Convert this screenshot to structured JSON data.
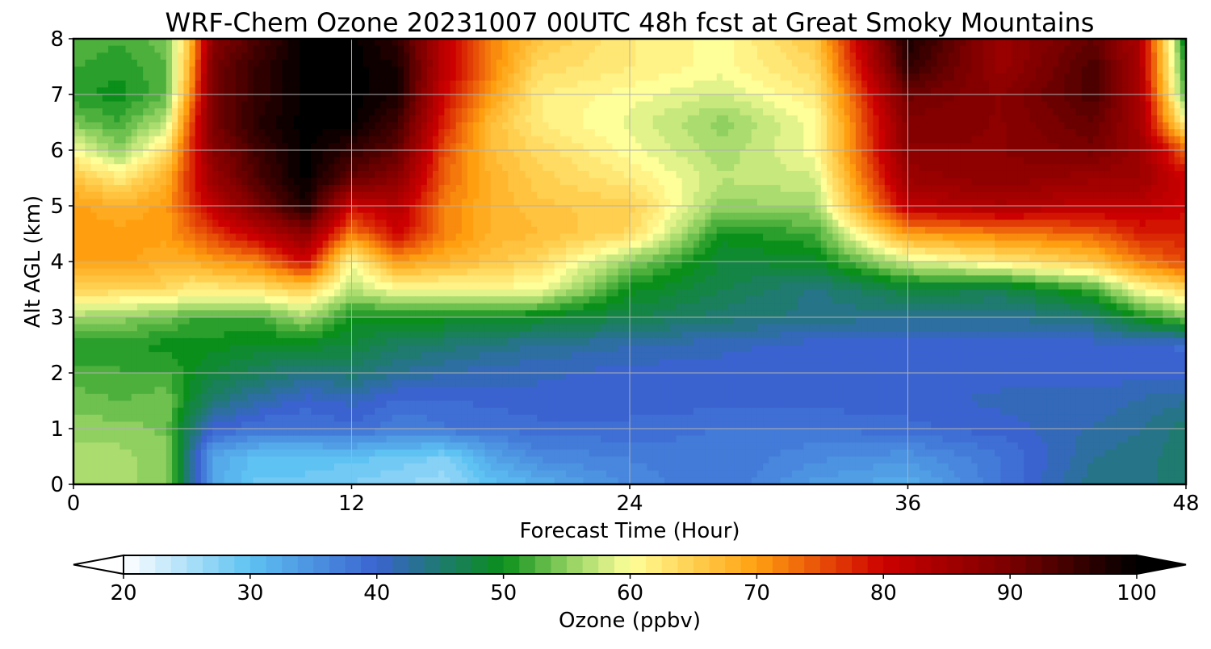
{
  "chart_data": {
    "type": "heatmap",
    "title": "WRF-Chem Ozone  20231007 00UTC 48h fcst at Great Smoky Mountains",
    "xlabel": "Forecast Time (Hour)",
    "ylabel": "Alt AGL (km)",
    "xlim": [
      0,
      48
    ],
    "ylim": [
      0,
      8
    ],
    "xticks": [
      0,
      12,
      24,
      36,
      48
    ],
    "yticks": [
      0,
      1,
      2,
      3,
      4,
      5,
      6,
      7,
      8
    ],
    "grid": true,
    "colorbar": {
      "label": "Ozone  (ppbv)",
      "range": [
        20,
        100
      ],
      "ticks": [
        20,
        30,
        40,
        50,
        60,
        70,
        80,
        90,
        100
      ],
      "extend": "both",
      "colormap": [
        {
          "value": 20,
          "color": "#ffffff"
        },
        {
          "value": 30,
          "color": "#5ec2f2"
        },
        {
          "value": 40,
          "color": "#3a63d0"
        },
        {
          "value": 45,
          "color": "#1f7a70"
        },
        {
          "value": 50,
          "color": "#0a8f1a"
        },
        {
          "value": 55,
          "color": "#8fd060"
        },
        {
          "value": 60,
          "color": "#ffff9a"
        },
        {
          "value": 65,
          "color": "#ffcf50"
        },
        {
          "value": 70,
          "color": "#ff9f10"
        },
        {
          "value": 75,
          "color": "#e85008"
        },
        {
          "value": 80,
          "color": "#cc0000"
        },
        {
          "value": 90,
          "color": "#7a0000"
        },
        {
          "value": 100,
          "color": "#000000"
        }
      ]
    },
    "x": [
      0,
      2,
      4,
      5,
      6,
      8,
      10,
      12,
      14,
      16,
      18,
      20,
      24,
      28,
      32,
      36,
      40,
      44,
      46,
      48
    ],
    "y": [
      0,
      0.5,
      1,
      1.5,
      2,
      2.5,
      3,
      3.5,
      4,
      4.5,
      5,
      5.5,
      6,
      6.5,
      7,
      7.5,
      8
    ],
    "z": [
      [
        57,
        56,
        55,
        44,
        33,
        29,
        29,
        28,
        27,
        26,
        30,
        32,
        36,
        38,
        34,
        32,
        38,
        44,
        44,
        45
      ],
      [
        56,
        56,
        55,
        44,
        33,
        30,
        30,
        30,
        29,
        28,
        33,
        36,
        37,
        38,
        36,
        35,
        38,
        43,
        44,
        45
      ],
      [
        55,
        55,
        54,
        46,
        40,
        38,
        38,
        39,
        37,
        38,
        38,
        39,
        39,
        38,
        38,
        39,
        40,
        42,
        43,
        45
      ],
      [
        54,
        53,
        54,
        49,
        45,
        42,
        40,
        41,
        39,
        39,
        40,
        40,
        40,
        40,
        40,
        40,
        41,
        41,
        42,
        43
      ],
      [
        52,
        52,
        52,
        50,
        48,
        46,
        44,
        45,
        43,
        42,
        41,
        41,
        40,
        40,
        40,
        40,
        40,
        40,
        40,
        40
      ],
      [
        51,
        51,
        50,
        50,
        50,
        49,
        49,
        48,
        46,
        45,
        44,
        43,
        42,
        41,
        40,
        40,
        40,
        40,
        40,
        39
      ],
      [
        56,
        55,
        54,
        52,
        52,
        52,
        56,
        50,
        50,
        50,
        50,
        49,
        47,
        45,
        44,
        43,
        43,
        45,
        50,
        54
      ],
      [
        65,
        64,
        64,
        62,
        62,
        63,
        65,
        57,
        60,
        60,
        60,
        60,
        50,
        47,
        44,
        48,
        47,
        52,
        60,
        64
      ],
      [
        70,
        70,
        68,
        68,
        70,
        72,
        80,
        60,
        70,
        68,
        66,
        64,
        55,
        48,
        49,
        58,
        62,
        66,
        72,
        76
      ],
      [
        70,
        70,
        70,
        73,
        76,
        82,
        88,
        72,
        80,
        72,
        68,
        67,
        64,
        50,
        52,
        70,
        72,
        74,
        78,
        78
      ],
      [
        70,
        68,
        70,
        76,
        82,
        90,
        98,
        80,
        83,
        72,
        68,
        66,
        65,
        55,
        56,
        82,
        84,
        82,
        82,
        80
      ],
      [
        66,
        62,
        68,
        77,
        86,
        94,
        100,
        92,
        88,
        74,
        68,
        65,
        62,
        57,
        58,
        86,
        88,
        86,
        86,
        80
      ],
      [
        60,
        55,
        63,
        76,
        88,
        95,
        100,
        96,
        92,
        75,
        67,
        64,
        60,
        56,
        60,
        88,
        88,
        90,
        86,
        74
      ],
      [
        54,
        52,
        57,
        74,
        90,
        97,
        100,
        100,
        95,
        78,
        67,
        62,
        59,
        55,
        60,
        89,
        88,
        92,
        85,
        60
      ],
      [
        51,
        50,
        53,
        70,
        90,
        96,
        100,
        100,
        98,
        80,
        70,
        62,
        60,
        58,
        62,
        91,
        88,
        94,
        85,
        52
      ],
      [
        52,
        51,
        53,
        68,
        90,
        96,
        100,
        100,
        98,
        82,
        72,
        64,
        62,
        60,
        64,
        96,
        86,
        94,
        84,
        50
      ],
      [
        53,
        52,
        54,
        66,
        88,
        94,
        100,
        100,
        96,
        82,
        72,
        66,
        62,
        60,
        66,
        98,
        86,
        92,
        84,
        48
      ]
    ]
  }
}
